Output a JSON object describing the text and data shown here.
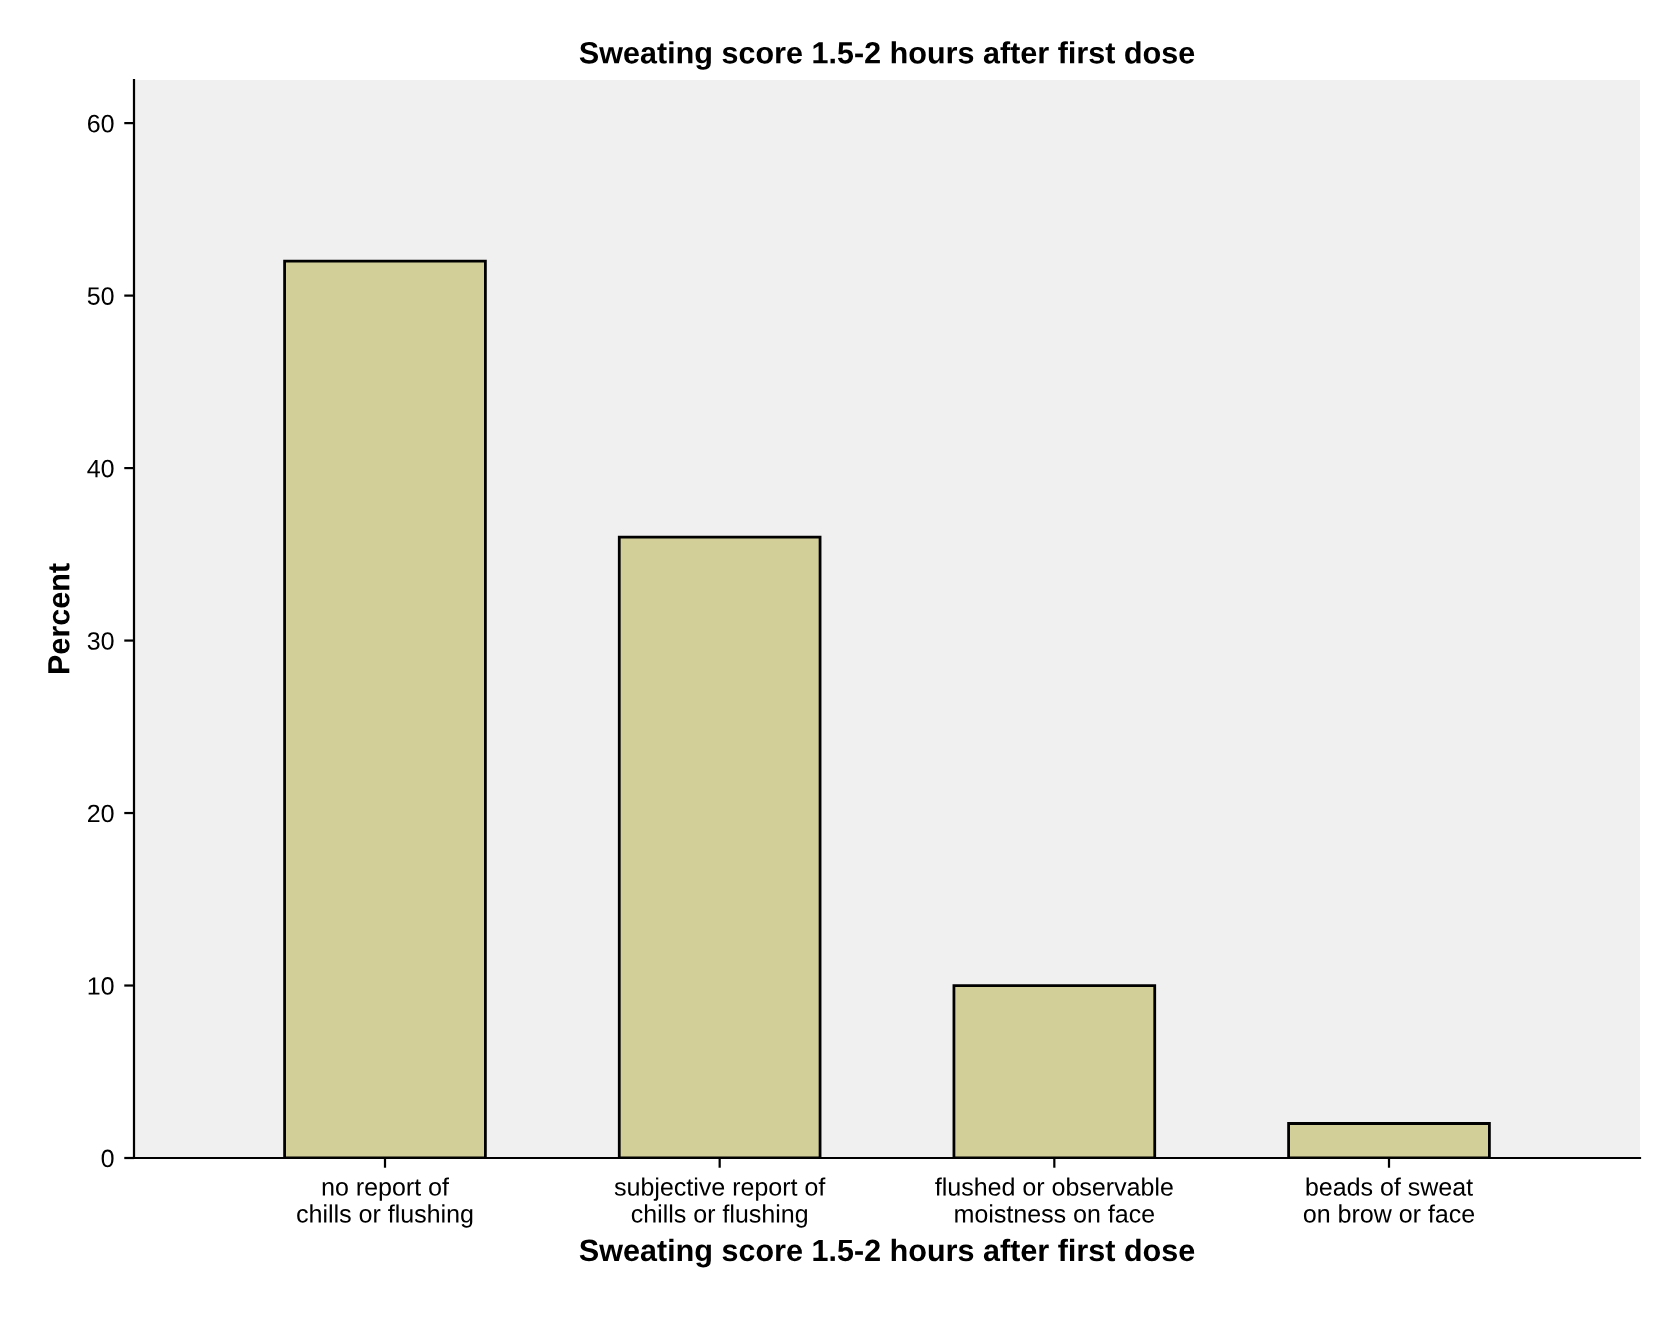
{
  "chart_data": {
    "type": "bar",
    "title": "Sweating score 1.5-2 hours after first dose",
    "xlabel": "Sweating score 1.5-2 hours after first dose",
    "ylabel": "Percent",
    "categories": [
      "no report of chills or flushing",
      "subjective report of chills or flushing",
      "flushed or observable moistness on face",
      "beads of sweat on brow or face"
    ],
    "values": [
      52,
      36,
      10,
      2
    ],
    "color": "#d3cf98",
    "ylim": [
      0,
      62.5
    ],
    "yticks": [
      0,
      10,
      20,
      30,
      40,
      50,
      60
    ],
    "grid": false,
    "legend": false
  }
}
